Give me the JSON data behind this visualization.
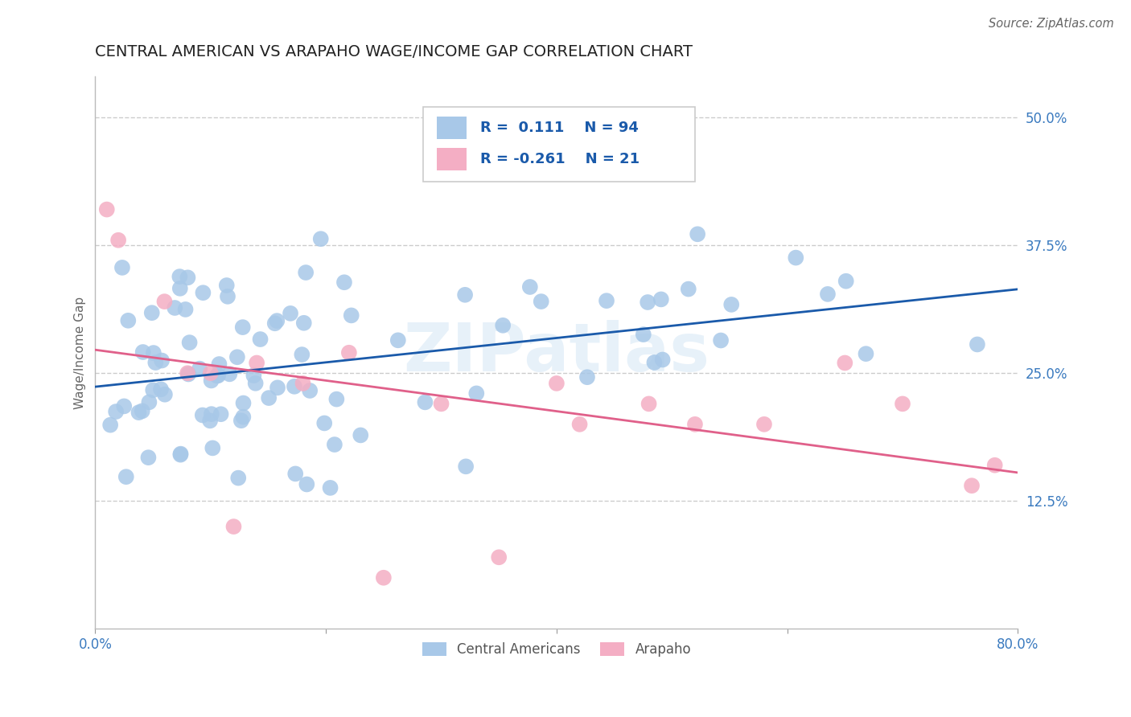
{
  "title": "CENTRAL AMERICAN VS ARAPAHO WAGE/INCOME GAP CORRELATION CHART",
  "source": "Source: ZipAtlas.com",
  "ylabel": "Wage/Income Gap",
  "xlim": [
    0.0,
    0.8
  ],
  "ylim": [
    0.0,
    0.54
  ],
  "yticks": [
    0.125,
    0.25,
    0.375,
    0.5
  ],
  "ytick_labels": [
    "12.5%",
    "25.0%",
    "37.5%",
    "50.0%"
  ],
  "xticks": [
    0.0,
    0.2,
    0.4,
    0.6,
    0.8
  ],
  "xtick_labels": [
    "0.0%",
    "",
    "",
    "",
    "80.0%"
  ],
  "R_blue": 0.111,
  "N_blue": 94,
  "R_pink": -0.261,
  "N_pink": 21,
  "blue_color": "#a8c8e8",
  "pink_color": "#f4aec4",
  "line_blue": "#1a5aaa",
  "line_pink": "#e0608a",
  "background_color": "#ffffff",
  "grid_color": "#cccccc",
  "watermark": "ZIPatlas",
  "title_fontsize": 14,
  "axis_label_fontsize": 11,
  "tick_fontsize": 12,
  "legend_fontsize": 13
}
